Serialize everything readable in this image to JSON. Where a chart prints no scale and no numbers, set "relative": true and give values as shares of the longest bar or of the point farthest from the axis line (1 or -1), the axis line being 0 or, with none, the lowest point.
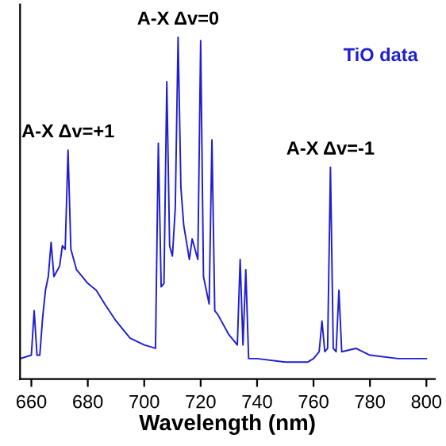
{
  "chart_data": {
    "type": "line",
    "relative": true,
    "xlabel": "Wavelength (nm)",
    "xlim": [
      656,
      803
    ],
    "xticks": [
      660,
      680,
      700,
      720,
      740,
      760,
      780,
      800
    ],
    "tick_labels": "x",
    "grid": false,
    "legend": "top right",
    "series": [
      {
        "name": "TiO data",
        "color": "#1f1fd0",
        "x": [
          656,
          660,
          661,
          662,
          663,
          664,
          665,
          666,
          667,
          668,
          670,
          671,
          672,
          673,
          674,
          676,
          678,
          680,
          683,
          686,
          690,
          695,
          700,
          704,
          705,
          706,
          707,
          708,
          709,
          710,
          711,
          712,
          713,
          714,
          716,
          717,
          719,
          720,
          721,
          723,
          724,
          725,
          726,
          730,
          733,
          734,
          735,
          736,
          737,
          740,
          750,
          758,
          760,
          762,
          763,
          764,
          765,
          766,
          767,
          768,
          769,
          770,
          775,
          780,
          790,
          800
        ],
        "values": [
          0.06,
          0.07,
          0.2,
          0.07,
          0.07,
          0.18,
          0.26,
          0.3,
          0.4,
          0.3,
          0.33,
          0.39,
          0.38,
          0.67,
          0.38,
          0.32,
          0.3,
          0.28,
          0.26,
          0.22,
          0.17,
          0.12,
          0.1,
          0.09,
          0.69,
          0.27,
          0.28,
          0.87,
          0.39,
          0.36,
          0.5,
          1.0,
          0.56,
          0.45,
          0.35,
          0.41,
          0.35,
          0.99,
          0.3,
          0.22,
          0.7,
          0.2,
          0.19,
          0.13,
          0.1,
          0.35,
          0.1,
          0.32,
          0.06,
          0.06,
          0.05,
          0.05,
          0.06,
          0.08,
          0.17,
          0.08,
          0.09,
          0.62,
          0.09,
          0.08,
          0.26,
          0.08,
          0.09,
          0.07,
          0.06,
          0.06
        ]
      }
    ],
    "annotations": [
      {
        "text": "A-X Δv=+1",
        "x": 673,
        "y": 0.67
      },
      {
        "text": "A-X Δv=0",
        "x": 712,
        "y": 1.0
      },
      {
        "text": "A-X Δv=-1",
        "x": 766,
        "y": 0.62
      }
    ]
  }
}
